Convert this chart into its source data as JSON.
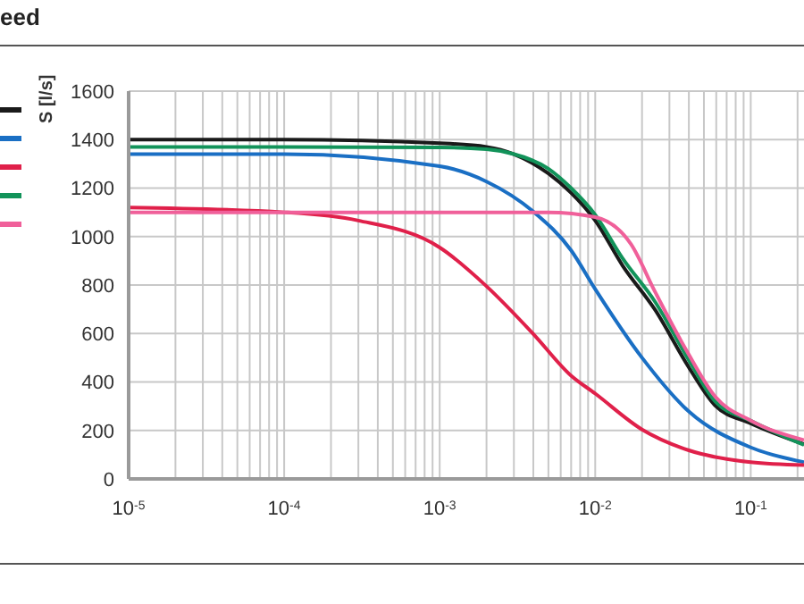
{
  "chart_data": {
    "type": "line",
    "title": "eed",
    "ylabel": "S [l/s]",
    "log": "x",
    "grid": true,
    "marker": "none",
    "line_style": "solid",
    "xlim": [
      1e-05,
      0.22
    ],
    "ylim": [
      0,
      1600
    ],
    "yticks": [
      0,
      200,
      400,
      600,
      800,
      1000,
      1200,
      1400,
      1600
    ],
    "xticks": [
      {
        "value": 1e-05,
        "label": "10$^{-5}$"
      },
      {
        "value": 2e-05,
        "label": null
      },
      {
        "value": 3e-05,
        "label": null
      },
      {
        "value": 4e-05,
        "label": null
      },
      {
        "value": 5e-05,
        "label": null
      },
      {
        "value": 6e-05,
        "label": null
      },
      {
        "value": 7e-05,
        "label": null
      },
      {
        "value": 8e-05,
        "label": null
      },
      {
        "value": 9e-05,
        "label": null
      },
      {
        "value": 0.0001,
        "label": "10$^{-4}$"
      },
      {
        "value": 0.0002,
        "label": null
      },
      {
        "value": 0.0003,
        "label": null
      },
      {
        "value": 0.0004,
        "label": null
      },
      {
        "value": 0.0005,
        "label": null
      },
      {
        "value": 0.0006,
        "label": null
      },
      {
        "value": 0.0007,
        "label": null
      },
      {
        "value": 0.0008,
        "label": null
      },
      {
        "value": 0.0009,
        "label": null
      },
      {
        "value": 0.001,
        "label": "10$^{-3}$"
      },
      {
        "value": 0.002,
        "label": null
      },
      {
        "value": 0.003,
        "label": null
      },
      {
        "value": 0.004,
        "label": null
      },
      {
        "value": 0.005,
        "label": null
      },
      {
        "value": 0.006,
        "label": null
      },
      {
        "value": 0.007,
        "label": null
      },
      {
        "value": 0.008,
        "label": null
      },
      {
        "value": 0.009,
        "label": null
      },
      {
        "value": 0.01,
        "label": "10$^{-2}$"
      },
      {
        "value": 0.02,
        "label": null
      },
      {
        "value": 0.03,
        "label": null
      },
      {
        "value": 0.04,
        "label": null
      },
      {
        "value": 0.05,
        "label": null
      },
      {
        "value": 0.06,
        "label": null
      },
      {
        "value": 0.07,
        "label": null
      },
      {
        "value": 0.08,
        "label": null
      },
      {
        "value": 0.09,
        "label": null
      },
      {
        "value": 0.1,
        "label": "10$^{-1}$"
      },
      {
        "value": 0.2,
        "label": null
      }
    ],
    "series": [
      {
        "color": "#1a1a1a",
        "x": [
          1e-05,
          0.0001,
          0.001,
          0.002,
          0.003,
          0.005,
          0.007,
          0.01,
          0.015,
          0.0243,
          0.04,
          0.059,
          0.1,
          0.22
        ],
        "values": [
          1400,
          1400,
          1385,
          1370,
          1340,
          1260,
          1180,
          1066,
          880,
          697,
          460,
          303,
          229,
          143
        ]
      },
      {
        "color": "#1a6fc4",
        "x": [
          1e-05,
          0.0001,
          0.001,
          0.002,
          0.004,
          0.007,
          0.01,
          0.02,
          0.04,
          0.1,
          0.22
        ],
        "values": [
          1340,
          1340,
          1290,
          1227,
          1103,
          943,
          783,
          500,
          278,
          130,
          69
        ]
      },
      {
        "color": "#e0204a",
        "x": [
          1e-05,
          0.0001,
          0.0003,
          0.001,
          0.002,
          0.004,
          0.007,
          0.01,
          0.02,
          0.04,
          0.1,
          0.22
        ],
        "values": [
          1120,
          1100,
          1066,
          955,
          795,
          598,
          426,
          352,
          204,
          118,
          69,
          57
        ]
      },
      {
        "color": "#12935a",
        "x": [
          1e-05,
          0.0001,
          0.001,
          0.002,
          0.003,
          0.005,
          0.007,
          0.01,
          0.015,
          0.0243,
          0.04,
          0.059,
          0.1,
          0.22
        ],
        "values": [
          1370,
          1370,
          1368,
          1360,
          1340,
          1280,
          1200,
          1090,
          910,
          730,
          490,
          320,
          240,
          140
        ]
      },
      {
        "color": "#f0609a",
        "x": [
          1e-05,
          0.0001,
          0.001,
          0.005,
          0.01,
          0.017,
          0.0243,
          0.039,
          0.059,
          0.1,
          0.22
        ],
        "values": [
          1100,
          1100,
          1100,
          1100,
          1080,
          968,
          771,
          525,
          340,
          241,
          160
        ]
      }
    ]
  }
}
